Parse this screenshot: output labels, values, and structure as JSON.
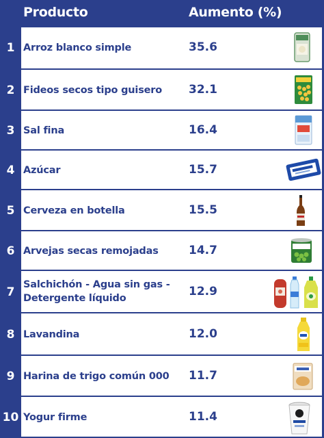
{
  "header": {
    "product": "Producto",
    "increase": "Aumento (%)"
  },
  "rows": [
    {
      "num": "1",
      "name": "Arroz blanco simple",
      "value": "35.6",
      "icon": "rice-bag-icon"
    },
    {
      "num": "2",
      "name": "Fideos secos tipo guisero",
      "value": "32.1",
      "icon": "pasta-pack-icon"
    },
    {
      "num": "3",
      "name": "Sal fina",
      "value": "16.4",
      "icon": "salt-pack-icon"
    },
    {
      "num": "4",
      "name": "Azúcar",
      "value": "15.7",
      "icon": "sugar-pack-icon"
    },
    {
      "num": "5",
      "name": "Cerveza en botella",
      "value": "15.5",
      "icon": "beer-bottle-icon"
    },
    {
      "num": "6",
      "name": "Arvejas secas remojadas",
      "value": "14.7",
      "icon": "peas-can-icon"
    },
    {
      "num": "7",
      "name": "Salchichón - Agua sin gas - Detergente líquido",
      "value": "12.9",
      "icon": "salami-water-detergent-icon"
    },
    {
      "num": "8",
      "name": "Lavandina",
      "value": "12.0",
      "icon": "bleach-bottle-icon"
    },
    {
      "num": "9",
      "name": "Harina de trigo común 000",
      "value": "11.7",
      "icon": "flour-pack-icon"
    },
    {
      "num": "10",
      "name": "Yogur firme",
      "value": "11.4",
      "icon": "yogurt-cup-icon"
    }
  ]
}
